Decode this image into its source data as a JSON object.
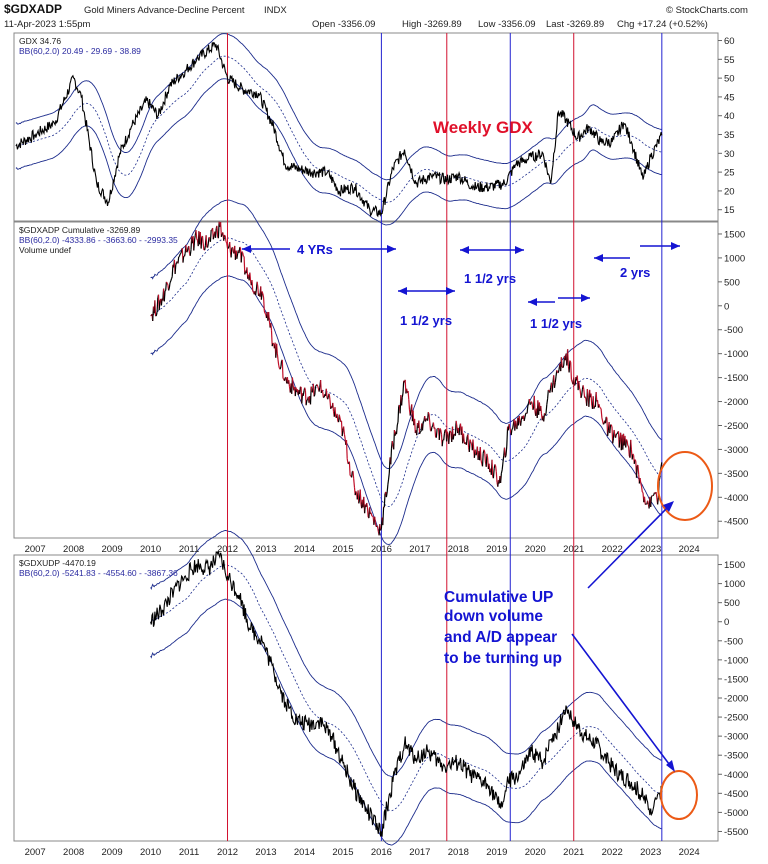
{
  "header": {
    "symbol": "$GDXADP",
    "name": "Gold Miners Advance-Decline Percent",
    "exchange": "INDX",
    "date": "11-Apr-2023 1:55pm",
    "open": "Open -3356.09",
    "high": "High -3269.89",
    "low": "Low -3356.09",
    "last": "Last -3269.89",
    "chg": "Chg +17.24 (+0.52%)",
    "watermark": "© StockCharts.com"
  },
  "colors": {
    "price": "#000000",
    "band": "#1c2c8c",
    "down": "#c0102a",
    "vline_red": "#d2112f",
    "vline_blue": "#2222d0",
    "circle": "#ec5a16",
    "annotation": "#1414d2"
  },
  "chart_data": [
    {
      "type": "line",
      "panel": "GDX",
      "legend": "GDX 34.76",
      "bb_legend": "BB(60,2.0) 20.49 - 29.69 - 38.89",
      "ylim": [
        12,
        62
      ],
      "yticks": [
        "60",
        "55",
        "50",
        "45",
        "40",
        "35",
        "30",
        "25",
        "20",
        "15"
      ],
      "ytick_values": [
        60,
        55,
        50,
        45,
        40,
        35,
        30,
        25,
        20,
        15
      ],
      "annotations": [
        "Weekly GDX"
      ],
      "series": [
        {
          "x": [
            2006.5,
            2007,
            2007.5,
            2008,
            2008.2,
            2008.6,
            2008.9,
            2009.2,
            2009.5,
            2009.9,
            2010.2,
            2010.5,
            2010.9,
            2011.2,
            2011.7,
            2012.0,
            2012.4,
            2012.8,
            2013.2,
            2013.5,
            2013.8,
            2014.2,
            2014.6,
            2014.9,
            2015.3,
            2015.7,
            2016.0,
            2016.3,
            2016.6,
            2016.9,
            2017.3,
            2017.7,
            2018.0,
            2018.4,
            2018.8,
            2019.2,
            2019.5,
            2019.9,
            2020.2,
            2020.4,
            2020.6,
            2020.8,
            2021.1,
            2021.4,
            2021.7,
            2022.0,
            2022.3,
            2022.5,
            2022.8,
            2023.0,
            2023.29
          ],
          "y": [
            32,
            35,
            38,
            50,
            45,
            22,
            17,
            30,
            37,
            44,
            40,
            48,
            52,
            55,
            59,
            50,
            47,
            46,
            37,
            27,
            26,
            25,
            25,
            20,
            21,
            15,
            14,
            26,
            31,
            22,
            24,
            23,
            24,
            21,
            21,
            22,
            27,
            29,
            30,
            22,
            41,
            39,
            34,
            37,
            33,
            33,
            38,
            33,
            23,
            29,
            34.76
          ]
        }
      ]
    },
    {
      "type": "line",
      "panel": "GDXADP",
      "legend": "$GDXADP Cumulative -3269.89",
      "bb_legend": "BB(60,2.0) -4333.86 - -3663.60 - -2993.35",
      "volume_legend": "Volume undef",
      "ylim": [
        -4850,
        1750
      ],
      "yticks": [
        "1500",
        "1000",
        "500",
        "0",
        "-500",
        "-1000",
        "-1500",
        "-2000",
        "-2500",
        "-3000",
        "-3500",
        "-4000",
        "-4500"
      ],
      "ytick_values": [
        1500,
        1000,
        500,
        0,
        -500,
        -1000,
        -1500,
        -2000,
        -2500,
        -3000,
        -3500,
        -4000,
        -4500
      ],
      "annotations": [
        "4 YRs",
        "1 1/2 yrs",
        "1 1/2 yrs",
        "1 1/2 yrs",
        "2 yrs"
      ],
      "series": [
        {
          "x": [
            2010.0,
            2010.3,
            2010.6,
            2010.9,
            2011.2,
            2011.5,
            2011.8,
            2012.0,
            2012.3,
            2012.6,
            2012.9,
            2013.2,
            2013.5,
            2013.8,
            2014.1,
            2014.4,
            2014.7,
            2015.0,
            2015.3,
            2015.6,
            2015.9,
            2016.0,
            2016.3,
            2016.6,
            2016.9,
            2017.2,
            2017.6,
            2018.0,
            2018.4,
            2018.8,
            2019.1,
            2019.3,
            2019.6,
            2019.9,
            2020.2,
            2020.4,
            2020.6,
            2020.8,
            2021.0,
            2021.3,
            2021.6,
            2021.9,
            2022.2,
            2022.5,
            2022.8,
            2023.0,
            2023.1,
            2023.2,
            2023.29
          ],
          "y": [
            -200,
            150,
            800,
            1100,
            1400,
            1300,
            1650,
            1200,
            1100,
            500,
            300,
            -800,
            -1500,
            -1800,
            -1900,
            -1700,
            -2100,
            -2600,
            -3800,
            -4200,
            -4600,
            -4650,
            -2900,
            -1600,
            -2600,
            -2400,
            -2800,
            -2550,
            -3000,
            -3300,
            -3700,
            -2600,
            -2400,
            -2000,
            -2300,
            -1700,
            -1400,
            -1000,
            -1500,
            -1900,
            -2000,
            -2600,
            -2800,
            -3000,
            -3900,
            -4200,
            -3900,
            -4000,
            -3270
          ]
        }
      ]
    },
    {
      "type": "line",
      "panel": "GDXUDP",
      "legend": "$GDXUDP -4470.19",
      "bb_legend": "BB(60,2.0) -5241.83 - -4554.60 - -3867.36",
      "ylim": [
        -5750,
        1750
      ],
      "yticks": [
        "1500",
        "1000",
        "500",
        "0",
        "-500",
        "-1000",
        "-1500",
        "-2000",
        "-2500",
        "-3000",
        "-3500",
        "-4000",
        "-4500",
        "-5000",
        "-5500"
      ],
      "ytick_values": [
        1500,
        1000,
        500,
        0,
        -500,
        -1000,
        -1500,
        -2000,
        -2500,
        -3000,
        -3500,
        -4000,
        -4500,
        -5000,
        -5500
      ],
      "annotations": [
        "Cumulative UP",
        "down volume",
        "and A/D appear",
        "to be turning up"
      ],
      "series": [
        {
          "x": [
            2010.0,
            2010.3,
            2010.6,
            2010.9,
            2011.2,
            2011.5,
            2011.8,
            2012.0,
            2012.3,
            2012.6,
            2012.9,
            2013.2,
            2013.5,
            2013.8,
            2014.1,
            2014.4,
            2014.7,
            2015.0,
            2015.3,
            2015.6,
            2015.9,
            2016.0,
            2016.3,
            2016.6,
            2016.9,
            2017.2,
            2017.6,
            2018.0,
            2018.4,
            2018.8,
            2019.1,
            2019.3,
            2019.6,
            2019.9,
            2020.2,
            2020.4,
            2020.6,
            2020.8,
            2021.0,
            2021.3,
            2021.6,
            2021.9,
            2022.2,
            2022.5,
            2022.8,
            2023.0,
            2023.1,
            2023.2,
            2023.29
          ],
          "y": [
            0,
            300,
            800,
            1200,
            1500,
            1400,
            1700,
            1200,
            700,
            -200,
            -500,
            -1300,
            -2100,
            -2600,
            -2700,
            -2600,
            -3000,
            -3700,
            -4400,
            -4900,
            -5400,
            -5500,
            -4200,
            -3200,
            -3600,
            -3400,
            -3800,
            -3700,
            -4100,
            -4300,
            -4900,
            -4200,
            -4000,
            -3400,
            -3700,
            -3100,
            -2800,
            -2200,
            -2600,
            -3000,
            -3200,
            -3700,
            -4000,
            -4200,
            -4600,
            -4900,
            -4700,
            -4500,
            -4470
          ]
        }
      ]
    }
  ],
  "x_axis": {
    "labels": [
      "2007",
      "2008",
      "2009",
      "2010",
      "2011",
      "2012",
      "2013",
      "2014",
      "2015",
      "2016",
      "2017",
      "2018",
      "2019",
      "2020",
      "2021",
      "2022",
      "2023",
      "2024"
    ],
    "values": [
      2007,
      2008,
      2009,
      2010,
      2011,
      2012,
      2013,
      2014,
      2015,
      2016,
      2017,
      2018,
      2019,
      2020,
      2021,
      2022,
      2023,
      2024
    ],
    "range": [
      2006.45,
      2024.75
    ]
  },
  "vertical_markers": {
    "red": [
      2012.0,
      2017.7,
      2021.0
    ],
    "blue": [
      2016.0,
      2019.35,
      2023.29
    ]
  }
}
